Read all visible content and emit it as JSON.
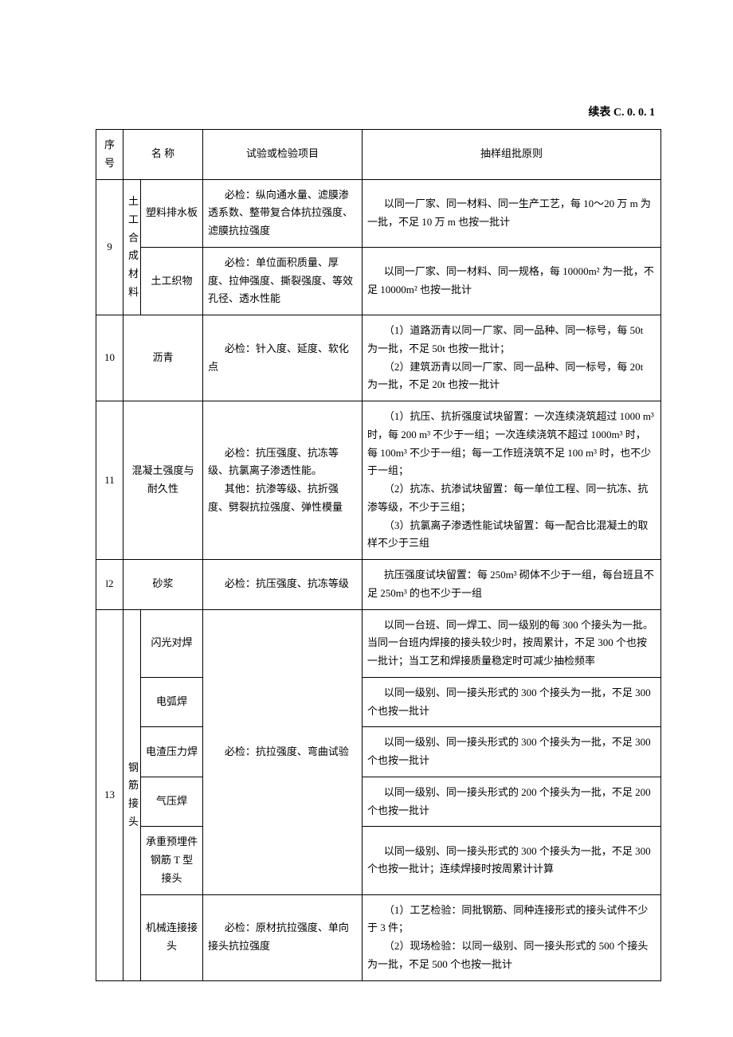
{
  "caption": "续表 C. 0. 0. 1",
  "headers": {
    "seq": "序号",
    "name": "名  称",
    "test": "试验或检验项目",
    "rule": "抽样组批原则"
  },
  "row9": {
    "seq": "9",
    "groupLabel": "土工合成材料",
    "a": {
      "name": "塑料排水板",
      "test": "必检：纵向通水量、滤膜渗透系数、整带复合体抗拉强度、滤膜抗拉强度",
      "rule": "以同一厂家、同一材料、同一生产工艺，每 10～20 万 m 为一批，不足 10 万 m 也按一批计"
    },
    "b": {
      "name": "土工织物",
      "test": "必检：单位面积质量、厚度、拉伸强度、撕裂强度、等效孔径、透水性能",
      "rule": "以同一厂家、同一材料、同一规格，每 10000m² 为一批，不足 10000m² 也按一批计"
    }
  },
  "row10": {
    "seq": "10",
    "name": "沥青",
    "test": "必检：针入度、延度、软化点",
    "rule1": "（1）道路沥青以同一厂家、同一品种、同一标号，每 50t 为一批，不足 50t 也按一批计；",
    "rule2": "（2）建筑沥青以同一厂家、同一品种、同一标号，每 20t 为一批，不足 20t 也按一批计"
  },
  "row11": {
    "seq": "11",
    "name": "混凝土强度与耐久性",
    "test1": "必检：抗压强度、抗冻等级、抗氯离子渗透性能。",
    "test2": "其他：抗渗等级、抗折强度、劈裂抗拉强度、弹性模量",
    "rule1": "（1）抗压、抗折强度试块留置：一次连续浇筑超过 1000 m³ 时，每 200 m³ 不少于一组；一次连续浇筑不超过 1000m³ 时，每 100m³ 不少于一组；每一工作班浇筑不足 100  m³ 时，也不少于一组；",
    "rule2": "（2）抗冻、抗渗试块留置：每一单位工程、同一抗冻、抗渗等级，不少于三组；",
    "rule3": "（3）抗氯离子渗透性能试块留置：每一配合比混凝土的取样不少于三组"
  },
  "row12": {
    "seq": "l2",
    "name": "砂浆",
    "test": "必检：抗压强度、抗冻等级",
    "rule": "抗压强度试块留置：每 250m³ 砌体不少于一组，每台班且不足 250m³ 的也不少于一组"
  },
  "row13": {
    "seq": "13",
    "groupLabel": "钢筋接头",
    "testWeld": "必检：抗拉强度、弯曲试验",
    "a": {
      "name": "闪光对焊",
      "rule": "以同一台班、同一焊工、同一级别的每 300 个接头为一批。当同一台班内焊接的接头较少时，按周累计，不足 300 个也按一批计；当工艺和焊接质量稳定时可减少抽检频率"
    },
    "b": {
      "name": "电弧焊",
      "rule": "以同一级别、同一接头形式的 300 个接头为一批，不足 300 个也按一批计"
    },
    "c": {
      "name": "电渣压力焊",
      "rule": "以同一级别、同一接头形式的 300 个接头为一批，不足 300 个也按一批计"
    },
    "d": {
      "name": "气压焊",
      "rule": "以同一级别、同一接头形式的 200 个接头为一批，不足 200 个也按一批计"
    },
    "e": {
      "name": "承重预埋件钢筋 T 型接头",
      "rule": "以同一级别、同一接头形式的 300 个接头为一批，不足 300 个也按一批计；连续焊接时按周累计计算"
    },
    "f": {
      "name": "机械连接接头",
      "test": "必检：原材抗拉强度、单向接头抗拉强度",
      "rule1": "（1）工艺检验：同批钢筋、同种连接形式的接头试件不少于 3 件；",
      "rule2": "（2）现场检验：以同一级别、同一接头形式的 500 个接头为一批，不足 500 个也按一批计"
    }
  }
}
